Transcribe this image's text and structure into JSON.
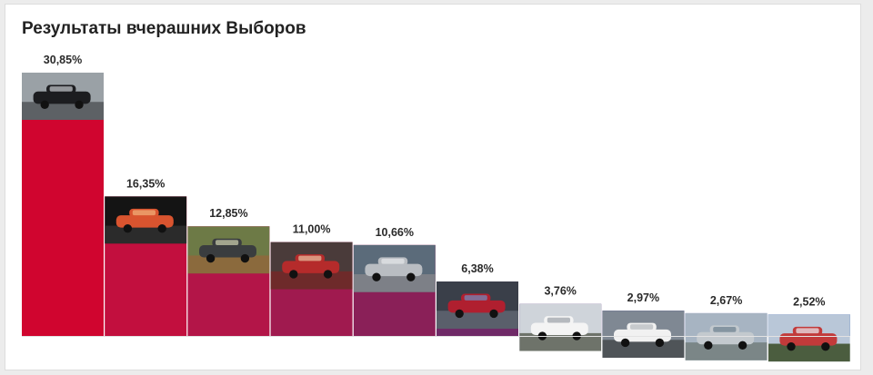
{
  "page": {
    "title": "Результаты вчерашних Выборов"
  },
  "chart_data": {
    "type": "bar",
    "title": "Результаты вчерашних Выборов",
    "xlabel": "",
    "ylabel": "",
    "ylim": [
      0,
      35
    ],
    "grid": false,
    "legend": "none",
    "categories": [
      "",
      "",
      "",
      "",
      "",
      "",
      "",
      "",
      "",
      ""
    ],
    "values": [
      30.85,
      16.35,
      12.85,
      11.0,
      10.66,
      6.38,
      3.76,
      2.97,
      2.67,
      2.52
    ],
    "labels": [
      "30,85%",
      "16,35%",
      "12,85%",
      "11,00%",
      "10,66%",
      "6,38%",
      "3,76%",
      "2,97%",
      "2,67%",
      "2,52%"
    ],
    "bar_colors": [
      "#d0052f",
      "#c20f3e",
      "#b31548",
      "#a01a4f",
      "#8a2058",
      "#6f2a67",
      "#523378",
      "#3d3a84",
      "#2f4390",
      "#2050a6"
    ],
    "photos": [
      "black-sedan-with-man-photo",
      "red-coupe-photo",
      "grey-suv-in-forest-photo",
      "engine-repair-photo",
      "silver-hatchback-photo",
      "engine-bay-photo",
      "white-sedan-photo",
      "white-sedan-parked-photo",
      "silver-car-riverside-photo",
      "red-bridge-photo"
    ]
  }
}
